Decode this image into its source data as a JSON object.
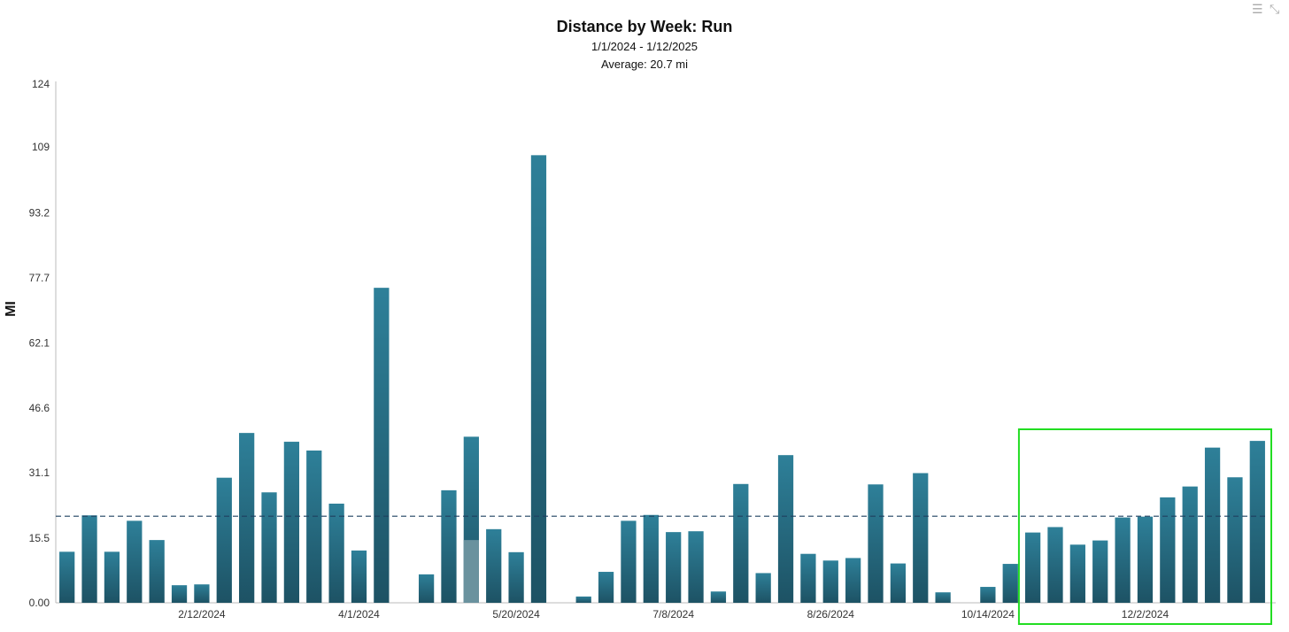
{
  "chart_data": {
    "type": "bar",
    "title": "Distance by Week: Run",
    "subtitle_range": "1/1/2024 - 1/12/2025",
    "subtitle_average": "Average: 20.7 mi",
    "ylabel": "MI",
    "ylim": [
      0,
      124
    ],
    "y_ticks": [
      "0.00",
      "15.5",
      "31.1",
      "46.6",
      "62.1",
      "77.7",
      "93.2",
      "109",
      "124"
    ],
    "y_tick_values": [
      0,
      15.5,
      31.1,
      46.6,
      62.1,
      77.7,
      93.2,
      109,
      124
    ],
    "x_tick_labels": [
      {
        "label": "2/12/2024",
        "index": 6
      },
      {
        "label": "4/1/2024",
        "index": 13
      },
      {
        "label": "5/20/2024",
        "index": 20
      },
      {
        "label": "7/8/2024",
        "index": 27
      },
      {
        "label": "8/26/2024",
        "index": 34
      },
      {
        "label": "10/14/2024",
        "index": 41
      },
      {
        "label": "12/2/2024",
        "index": 48
      }
    ],
    "average": 20.7,
    "values": [
      12.2,
      20.9,
      12.2,
      19.6,
      15.0,
      4.2,
      4.4,
      29.9,
      40.6,
      26.4,
      38.5,
      36.4,
      23.7,
      12.5,
      75.3,
      0,
      6.8,
      26.9,
      39.7,
      17.6,
      12.1,
      107.0,
      0,
      1.5,
      7.4,
      19.6,
      21.0,
      16.9,
      17.1,
      2.7,
      28.4,
      7.1,
      35.3,
      11.7,
      10.1,
      10.7,
      28.3,
      9.4,
      31.0,
      2.5,
      0,
      3.8,
      9.3,
      16.8,
      18.1,
      13.9,
      14.9,
      20.4,
      20.6,
      25.2,
      27.8,
      37.1,
      30.0,
      38.7
    ],
    "highlighted_index": 18,
    "highlighted_portion": 15.0,
    "bar_color": "#2a7a90",
    "bar_color_dark": "#1e5566",
    "highlight_color": "#6a929e",
    "avg_line_color": "#1f4060",
    "selection_box_color": "#22dd22",
    "selection_range": [
      43,
      53
    ]
  }
}
